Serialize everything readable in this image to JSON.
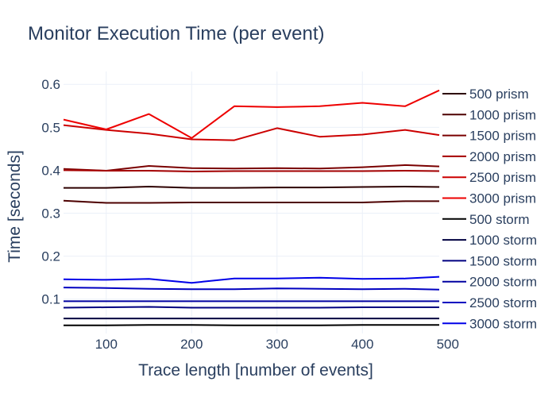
{
  "chart_data": {
    "type": "line",
    "title": "Monitor Execution Time (per event)",
    "xlabel": "Trace length [number of events]",
    "ylabel": "Time [seconds]",
    "xlim": [
      50,
      490
    ],
    "ylim": [
      0.02,
      0.63
    ],
    "xticks": [
      100,
      200,
      300,
      400,
      500
    ],
    "yticks": [
      0.1,
      0.2,
      0.3,
      0.4,
      0.5,
      0.6
    ],
    "grid": true,
    "legend_position": "right",
    "x": [
      50,
      100,
      150,
      200,
      250,
      300,
      350,
      400,
      450,
      490
    ],
    "series": [
      {
        "name": "500 prism",
        "color": "#2d0000",
        "values": [
          0.359,
          0.359,
          0.362,
          0.359,
          0.359,
          0.36,
          0.36,
          0.361,
          0.362,
          0.361
        ]
      },
      {
        "name": "1000 prism",
        "color": "#4d0000",
        "values": [
          0.329,
          0.324,
          0.324,
          0.325,
          0.325,
          0.325,
          0.325,
          0.325,
          0.328,
          0.328
        ]
      },
      {
        "name": "1500 prism",
        "color": "#7a0000",
        "values": [
          0.403,
          0.399,
          0.41,
          0.405,
          0.404,
          0.405,
          0.404,
          0.407,
          0.412,
          0.409
        ]
      },
      {
        "name": "2000 prism",
        "color": "#a50000",
        "values": [
          0.4,
          0.399,
          0.399,
          0.397,
          0.398,
          0.398,
          0.398,
          0.398,
          0.399,
          0.398
        ]
      },
      {
        "name": "2500 prism",
        "color": "#cc0000",
        "values": [
          0.505,
          0.494,
          0.485,
          0.472,
          0.47,
          0.498,
          0.478,
          0.483,
          0.494,
          0.482
        ]
      },
      {
        "name": "3000 prism",
        "color": "#ee0000",
        "values": [
          0.518,
          0.495,
          0.531,
          0.475,
          0.549,
          0.547,
          0.549,
          0.557,
          0.549,
          0.586
        ]
      },
      {
        "name": "500 storm",
        "color": "#000000",
        "values": [
          0.039,
          0.039,
          0.04,
          0.04,
          0.039,
          0.039,
          0.039,
          0.04,
          0.04,
          0.04
        ]
      },
      {
        "name": "1000 storm",
        "color": "#000040",
        "values": [
          0.055,
          0.055,
          0.055,
          0.055,
          0.055,
          0.055,
          0.055,
          0.055,
          0.055,
          0.055
        ]
      },
      {
        "name": "1500 storm",
        "color": "#000080",
        "values": [
          0.08,
          0.081,
          0.082,
          0.08,
          0.08,
          0.08,
          0.08,
          0.081,
          0.081,
          0.081
        ]
      },
      {
        "name": "2000 storm",
        "color": "#0000a0",
        "values": [
          0.095,
          0.095,
          0.095,
          0.095,
          0.095,
          0.095,
          0.095,
          0.095,
          0.095,
          0.095
        ]
      },
      {
        "name": "2500 storm",
        "color": "#0000c0",
        "values": [
          0.127,
          0.126,
          0.124,
          0.123,
          0.123,
          0.125,
          0.124,
          0.123,
          0.124,
          0.122
        ]
      },
      {
        "name": "3000 storm",
        "color": "#0000e8",
        "values": [
          0.146,
          0.145,
          0.147,
          0.138,
          0.148,
          0.148,
          0.15,
          0.147,
          0.148,
          0.152
        ]
      }
    ]
  }
}
